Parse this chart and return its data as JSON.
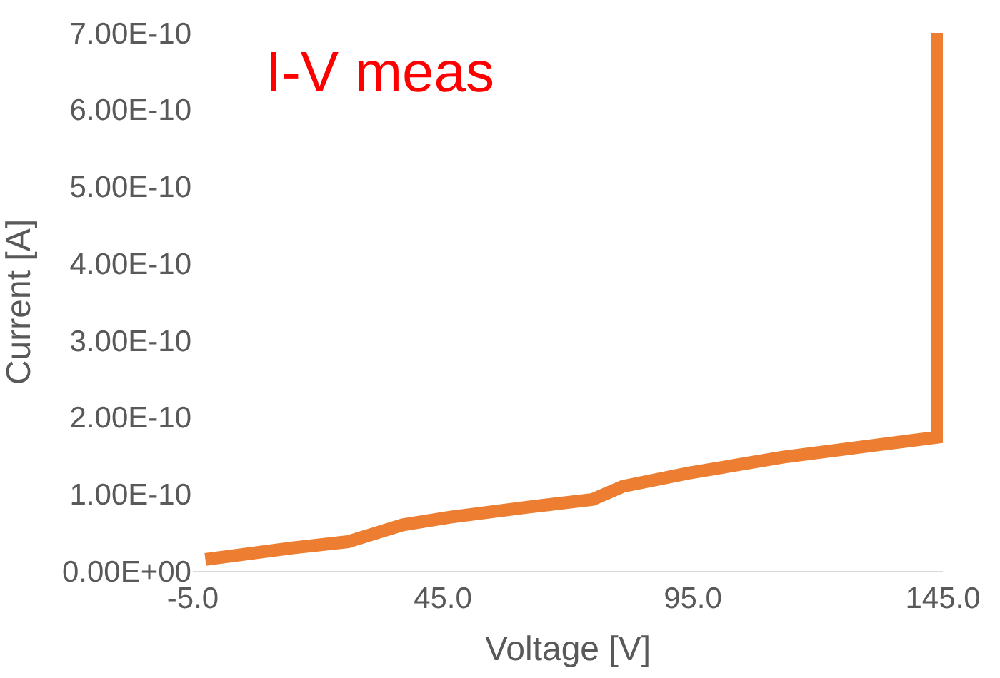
{
  "chart_data": {
    "type": "line",
    "xlabel": "Voltage [V]",
    "ylabel": "Current [A]",
    "annotations": [
      "I-V meas"
    ],
    "x": [
      -2.5,
      15,
      26,
      37,
      46.5,
      62,
      75,
      81,
      94,
      113,
      132,
      144,
      144
    ],
    "series": [
      {
        "color": "#ed7d31",
        "values": [
          1.5e-11,
          3e-11,
          3.8e-11,
          6e-11,
          7e-11,
          8.3e-11,
          9.3e-11,
          1.1e-10,
          1.27e-10,
          1.48e-10,
          1.64e-10,
          1.74e-10,
          7e-10
        ]
      }
    ],
    "xlim": [
      -5,
      145
    ],
    "ylim": [
      0,
      7e-10
    ],
    "xticks": [
      {
        "value": -5,
        "label": "-5.0"
      },
      {
        "value": 45,
        "label": "45.0"
      },
      {
        "value": 95,
        "label": "95.0"
      },
      {
        "value": 145,
        "label": "145.0"
      }
    ],
    "yticks": [
      {
        "value": 0,
        "label": "0.00E+00"
      },
      {
        "value": 1e-10,
        "label": "1.00E-10"
      },
      {
        "value": 2e-10,
        "label": "2.00E-10"
      },
      {
        "value": 3e-10,
        "label": "3.00E-10"
      },
      {
        "value": 4e-10,
        "label": "4.00E-10"
      },
      {
        "value": 5e-10,
        "label": "5.00E-10"
      },
      {
        "value": 6e-10,
        "label": "6.00E-10"
      },
      {
        "value": 7e-10,
        "label": "7.00E-10"
      }
    ],
    "marker": "none",
    "line_style": "solid"
  }
}
